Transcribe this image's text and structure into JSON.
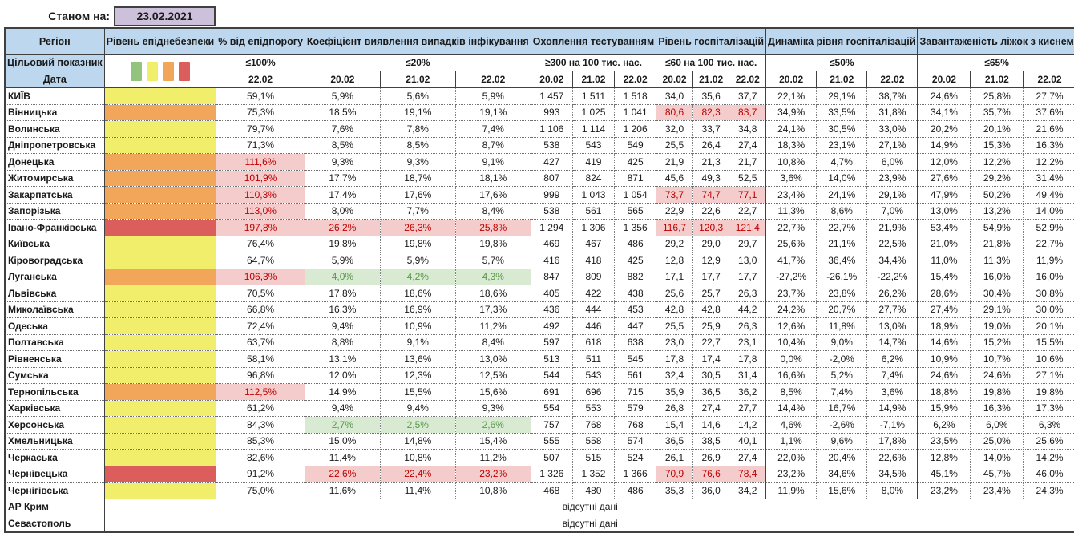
{
  "meta": {
    "as_of_label": "Станом на:",
    "as_of_date": "23.02.2021"
  },
  "colors": {
    "header_blue": "#bdd7ee",
    "date_cell_purple": "#ccc0da",
    "risk_yellow": "#f1ee6b",
    "risk_orange": "#f2a65a",
    "risk_red": "#dc5e5c",
    "legend_green": "#93c47d",
    "exceeded_bg": "#f4cccc",
    "exceeded_text": "#c00000",
    "good_bg": "#d9ead3",
    "good_text": "#59984a"
  },
  "header": {
    "region": "Регіон",
    "risk": "Рівень епіднебезпеки",
    "target_label": "Цільовий показник",
    "date_label": "Дата",
    "legend_swatches": [
      "green",
      "yellow",
      "orange",
      "red"
    ],
    "groups": [
      {
        "label": "% від епідпорогу",
        "target": "≤100%",
        "dates": [
          "22.02"
        ]
      },
      {
        "label": "Коефіцієнт виявлення випадків інфікування",
        "target": "≤20%",
        "dates": [
          "20.02",
          "21.02",
          "22.02"
        ]
      },
      {
        "label": "Охоплення тестуванням",
        "target": "≥300 на 100 тис. нас.",
        "dates": [
          "20.02",
          "21.02",
          "22.02"
        ]
      },
      {
        "label": "Рівень госпіталізацій",
        "target": "≤60 на 100 тис. нас.",
        "dates": [
          "20.02",
          "21.02",
          "22.02"
        ]
      },
      {
        "label": "Динаміка рівня госпіталізацій",
        "target": "≤50%",
        "dates": [
          "20.02",
          "21.02",
          "22.02"
        ]
      },
      {
        "label": "Завантаженість ліжок з киснем",
        "target": "≤65%",
        "dates": [
          "20.02",
          "21.02",
          "22.02"
        ]
      }
    ]
  },
  "rows": [
    {
      "region": "КИЇВ",
      "risk": "yellow",
      "values": [
        "59,1%",
        "5,9%",
        "5,6%",
        "5,9%",
        "1 457",
        "1 511",
        "1 518",
        "34,0",
        "35,6",
        "37,7",
        "22,1%",
        "29,1%",
        "38,7%",
        "24,6%",
        "25,8%",
        "27,7%"
      ],
      "styles": "nnnnnnnnnnnnnnnn"
    },
    {
      "region": "Вінницька",
      "risk": "orange",
      "values": [
        "75,3%",
        "18,5%",
        "19,1%",
        "19,1%",
        "993",
        "1 025",
        "1 041",
        "80,6",
        "82,3",
        "83,7",
        "34,9%",
        "33,5%",
        "31,8%",
        "34,1%",
        "35,7%",
        "37,6%"
      ],
      "styles": "nnnnnnnbbbnnnnnn"
    },
    {
      "region": "Волинська",
      "risk": "yellow",
      "values": [
        "79,7%",
        "7,6%",
        "7,8%",
        "7,4%",
        "1 106",
        "1 114",
        "1 206",
        "32,0",
        "33,7",
        "34,8",
        "24,1%",
        "30,5%",
        "33,0%",
        "20,2%",
        "20,1%",
        "21,6%"
      ],
      "styles": "nnnnnnnnnnnnnnnn"
    },
    {
      "region": "Дніпропетровська",
      "risk": "yellow",
      "values": [
        "71,3%",
        "8,5%",
        "8,5%",
        "8,7%",
        "538",
        "543",
        "549",
        "25,5",
        "26,4",
        "27,4",
        "18,3%",
        "23,1%",
        "27,1%",
        "14,9%",
        "15,3%",
        "16,3%"
      ],
      "styles": "nnnnnnnnnnnnnnnn"
    },
    {
      "region": "Донецька",
      "risk": "orange",
      "values": [
        "111,6%",
        "9,3%",
        "9,3%",
        "9,1%",
        "427",
        "419",
        "425",
        "21,9",
        "21,3",
        "21,7",
        "10,8%",
        "4,7%",
        "6,0%",
        "12,0%",
        "12,2%",
        "12,2%"
      ],
      "styles": "bnnnnnnnnnnnnnnn"
    },
    {
      "region": "Житомирська",
      "risk": "orange",
      "values": [
        "101,9%",
        "17,7%",
        "18,7%",
        "18,1%",
        "807",
        "824",
        "871",
        "45,6",
        "49,3",
        "52,5",
        "3,6%",
        "14,0%",
        "23,9%",
        "27,6%",
        "29,2%",
        "31,4%"
      ],
      "styles": "bnnnnnnnnnnnnnnn"
    },
    {
      "region": "Закарпатська",
      "risk": "orange",
      "values": [
        "110,3%",
        "17,4%",
        "17,6%",
        "17,6%",
        "999",
        "1 043",
        "1 054",
        "73,7",
        "74,7",
        "77,1",
        "23,4%",
        "24,1%",
        "29,1%",
        "47,9%",
        "50,2%",
        "49,4%"
      ],
      "styles": "bnnnnnnbbbnnnnnn"
    },
    {
      "region": "Запорізька",
      "risk": "orange",
      "values": [
        "113,0%",
        "8,0%",
        "7,7%",
        "8,4%",
        "538",
        "561",
        "565",
        "22,9",
        "22,6",
        "22,7",
        "11,3%",
        "8,6%",
        "7,0%",
        "13,0%",
        "13,2%",
        "14,0%"
      ],
      "styles": "bnnnnnnnnnnnnnnn"
    },
    {
      "region": "Івано-Франківська",
      "risk": "red",
      "values": [
        "197,8%",
        "26,2%",
        "26,3%",
        "25,8%",
        "1 294",
        "1 306",
        "1 356",
        "116,7",
        "120,3",
        "121,4",
        "22,7%",
        "22,7%",
        "21,9%",
        "53,4%",
        "54,9%",
        "52,9%"
      ],
      "styles": "bbbbnnnbbbnnnnnn"
    },
    {
      "region": "Київська",
      "risk": "yellow",
      "values": [
        "76,4%",
        "19,8%",
        "19,8%",
        "19,8%",
        "469",
        "467",
        "486",
        "29,2",
        "29,0",
        "29,7",
        "25,6%",
        "21,1%",
        "22,5%",
        "21,0%",
        "21,8%",
        "22,7%"
      ],
      "styles": "nnnnnnnnnnnnnnnn"
    },
    {
      "region": "Кіровоградська",
      "risk": "yellow",
      "values": [
        "64,7%",
        "5,9%",
        "5,9%",
        "5,7%",
        "416",
        "418",
        "425",
        "12,8",
        "12,9",
        "13,0",
        "41,7%",
        "36,4%",
        "34,4%",
        "11,0%",
        "11,3%",
        "11,9%"
      ],
      "styles": "nnnnnnnnnnnnnnnn"
    },
    {
      "region": "Луганська",
      "risk": "orange",
      "values": [
        "106,3%",
        "4,0%",
        "4,2%",
        "4,3%",
        "847",
        "809",
        "882",
        "17,1",
        "17,7",
        "17,7",
        "-27,2%",
        "-26,1%",
        "-22,2%",
        "15,4%",
        "16,0%",
        "16,0%"
      ],
      "styles": "bgggnnnnnnnnnnnn"
    },
    {
      "region": "Львівська",
      "risk": "yellow",
      "values": [
        "70,5%",
        "17,8%",
        "18,6%",
        "18,6%",
        "405",
        "422",
        "438",
        "25,6",
        "25,7",
        "26,3",
        "23,7%",
        "23,8%",
        "26,2%",
        "28,6%",
        "30,4%",
        "30,8%"
      ],
      "styles": "nnnnnnnnnnnnnnnn"
    },
    {
      "region": "Миколаївська",
      "risk": "yellow",
      "values": [
        "66,8%",
        "16,3%",
        "16,9%",
        "17,3%",
        "436",
        "444",
        "453",
        "42,8",
        "42,8",
        "44,2",
        "24,2%",
        "20,7%",
        "27,7%",
        "27,4%",
        "29,1%",
        "30,0%"
      ],
      "styles": "nnnnnnnnnnnnnnnn"
    },
    {
      "region": "Одеська",
      "risk": "yellow",
      "values": [
        "72,4%",
        "9,4%",
        "10,9%",
        "11,2%",
        "492",
        "446",
        "447",
        "25,5",
        "25,9",
        "26,3",
        "12,6%",
        "11,8%",
        "13,0%",
        "18,9%",
        "19,0%",
        "20,1%"
      ],
      "styles": "nnnnnnnnnnnnnnnn"
    },
    {
      "region": "Полтавська",
      "risk": "yellow",
      "values": [
        "63,7%",
        "8,8%",
        "9,1%",
        "8,4%",
        "597",
        "618",
        "638",
        "23,0",
        "22,7",
        "23,1",
        "10,4%",
        "9,0%",
        "14,7%",
        "14,6%",
        "15,2%",
        "15,5%"
      ],
      "styles": "nnnnnnnnnnnnnnnn"
    },
    {
      "region": "Рівненська",
      "risk": "yellow",
      "values": [
        "58,1%",
        "13,1%",
        "13,6%",
        "13,0%",
        "513",
        "511",
        "545",
        "17,8",
        "17,4",
        "17,8",
        "0,0%",
        "-2,0%",
        "6,2%",
        "10,9%",
        "10,7%",
        "10,6%"
      ],
      "styles": "nnnnnnnnnnnnnnnn"
    },
    {
      "region": "Сумська",
      "risk": "yellow",
      "values": [
        "96,8%",
        "12,0%",
        "12,3%",
        "12,5%",
        "544",
        "543",
        "561",
        "32,4",
        "30,5",
        "31,4",
        "16,6%",
        "5,2%",
        "7,4%",
        "24,6%",
        "24,6%",
        "27,1%"
      ],
      "styles": "nnnnnnnnnnnnnnnn"
    },
    {
      "region": "Тернопільська",
      "risk": "orange",
      "values": [
        "112,5%",
        "14,9%",
        "15,5%",
        "15,6%",
        "691",
        "696",
        "715",
        "35,9",
        "36,5",
        "36,2",
        "8,5%",
        "7,4%",
        "3,6%",
        "18,8%",
        "19,8%",
        "19,8%"
      ],
      "styles": "bnnnnnnnnnnnnnnn"
    },
    {
      "region": "Харківська",
      "risk": "yellow",
      "values": [
        "61,2%",
        "9,4%",
        "9,4%",
        "9,3%",
        "554",
        "553",
        "579",
        "26,8",
        "27,4",
        "27,7",
        "14,4%",
        "16,7%",
        "14,9%",
        "15,9%",
        "16,3%",
        "17,3%"
      ],
      "styles": "nnnnnnnnnnnnnnnn"
    },
    {
      "region": "Херсонська",
      "risk": "yellow",
      "values": [
        "84,3%",
        "2,7%",
        "2,5%",
        "2,6%",
        "757",
        "768",
        "768",
        "15,4",
        "14,6",
        "14,2",
        "4,6%",
        "-2,6%",
        "-7,1%",
        "6,2%",
        "6,0%",
        "6,3%"
      ],
      "styles": "ngggnnnnnnnnnnnn"
    },
    {
      "region": "Хмельницька",
      "risk": "yellow",
      "values": [
        "85,3%",
        "15,0%",
        "14,8%",
        "15,4%",
        "555",
        "558",
        "574",
        "36,5",
        "38,5",
        "40,1",
        "1,1%",
        "9,6%",
        "17,8%",
        "23,5%",
        "25,0%",
        "25,6%"
      ],
      "styles": "nnnnnnnnnnnnnnnn"
    },
    {
      "region": "Черкаська",
      "risk": "yellow",
      "values": [
        "82,6%",
        "11,4%",
        "10,8%",
        "11,2%",
        "507",
        "515",
        "524",
        "26,1",
        "26,9",
        "27,4",
        "22,0%",
        "20,4%",
        "22,6%",
        "12,8%",
        "14,0%",
        "14,2%"
      ],
      "styles": "nnnnnnnnnnnnnnnn"
    },
    {
      "region": "Чернівецька",
      "risk": "red",
      "values": [
        "91,2%",
        "22,6%",
        "22,4%",
        "23,2%",
        "1 326",
        "1 352",
        "1 366",
        "70,9",
        "76,6",
        "78,4",
        "23,2%",
        "34,6%",
        "34,5%",
        "45,1%",
        "45,7%",
        "46,0%"
      ],
      "styles": "nbbbnnnbbbnnnnnn"
    },
    {
      "region": "Чернігівська",
      "risk": "yellow",
      "values": [
        "75,0%",
        "11,6%",
        "11,4%",
        "10,8%",
        "468",
        "480",
        "486",
        "35,3",
        "36,0",
        "34,2",
        "11,9%",
        "15,6%",
        "8,0%",
        "23,2%",
        "23,4%",
        "24,3%"
      ],
      "styles": "nnnnnnnnnnnnnnnn"
    }
  ],
  "no_data_rows": [
    {
      "region": "АР Крим",
      "text": "відсутні дані"
    },
    {
      "region": "Севастополь",
      "text": "відсутні дані"
    }
  ]
}
